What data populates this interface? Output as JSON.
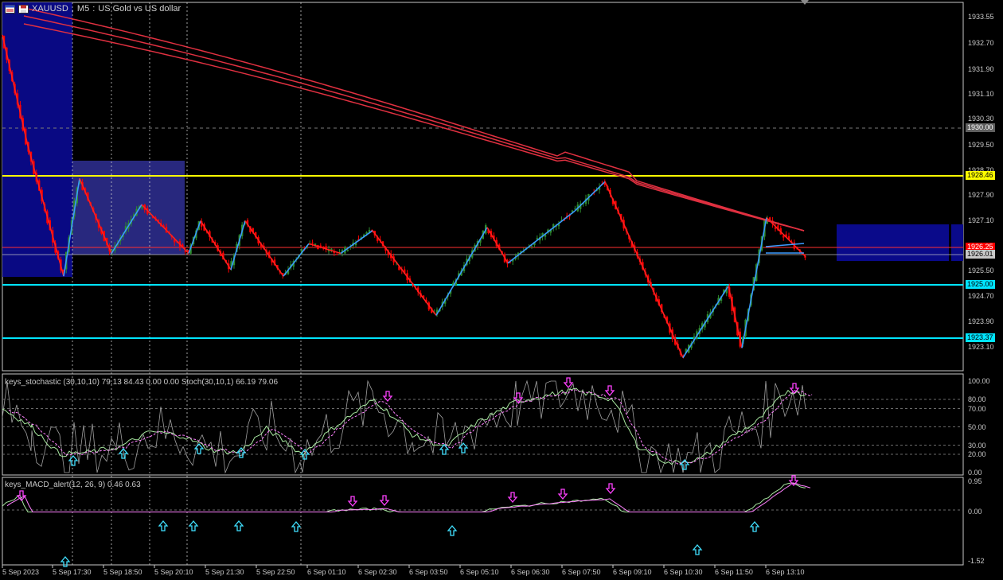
{
  "header": {
    "symbol": "XAUUSD",
    "timeframe": "M5",
    "description": "US Gold vs US dollar",
    "icons": [
      "chart-window-icon",
      "save-icon"
    ]
  },
  "price_axis": {
    "ticks": [
      "1933.55",
      "1932.70",
      "1931.90",
      "1931.10",
      "1930.30",
      "1929.50",
      "1928.70",
      "1927.90",
      "1927.10",
      "1926.25",
      "1925.50",
      "1924.70",
      "1923.90",
      "1923.10"
    ],
    "labels": [
      {
        "text": "1930.00",
        "kind": "dashed-level",
        "bg": "#606060",
        "fg": "#ffffff"
      },
      {
        "text": "1928.46",
        "kind": "yellow-level",
        "bg": "#ffff00",
        "fg": "#000000"
      },
      {
        "text": "1926.25",
        "kind": "bid",
        "bg": "#ff0000",
        "fg": "#ffffff"
      },
      {
        "text": "1926.01",
        "kind": "ma-value",
        "bg": "#c8c8c8",
        "fg": "#000000"
      },
      {
        "text": "1925.00",
        "kind": "cyan-level",
        "bg": "#00e5ff",
        "fg": "#000000"
      },
      {
        "text": "1923.37",
        "kind": "cyan-level",
        "bg": "#00e5ff",
        "fg": "#000000"
      }
    ]
  },
  "stochastic": {
    "label": "keys_stochastic (30,10,10) 79.13 84.43 0.00 0.00 Stoch(30,10,1) 66.19 79.06",
    "ticks": [
      "100.00",
      "80.00",
      "70.00",
      "50.00",
      "30.00",
      "20.00",
      "0.00"
    ]
  },
  "macd": {
    "label": "keys_MACD_alert(12, 26, 9) 0.46 0.63",
    "ticks": [
      "0.95",
      "0.00",
      "-1.52"
    ]
  },
  "time_axis": [
    "5 Sep 2023",
    "5 Sep 17:30",
    "5 Sep 18:50",
    "5 Sep 20:10",
    "5 Sep 21:30",
    "5 Sep 22:50",
    "6 Sep 01:10",
    "6 Sep 02:30",
    "6 Sep 03:50",
    "6 Sep 05:10",
    "6 Sep 06:30",
    "6 Sep 07:50",
    "6 Sep 09:10",
    "6 Sep 10:30",
    "6 Sep 11:50",
    "6 Sep 13:10"
  ],
  "colors": {
    "background": "#000000",
    "bull": "#2e8b2e",
    "bear": "#ff0000",
    "zigzag_up": "#3a9bff",
    "zigzag_down": "#ff2020",
    "ma": "#e03040",
    "level_yellow": "#ffff00",
    "level_cyan": "#00e5ff",
    "zone": "#0a0a8a",
    "zone2": "#2c2c8c",
    "arrow_up": "#40e0ff",
    "arrow_down": "#ff40ff",
    "stoch_main": "#a8e8a0",
    "stoch_signal": "#ff80ff",
    "stoch_raw": "#a0a0a0",
    "macd_main": "#a8e8a0",
    "macd_signal": "#ff80ff"
  }
}
